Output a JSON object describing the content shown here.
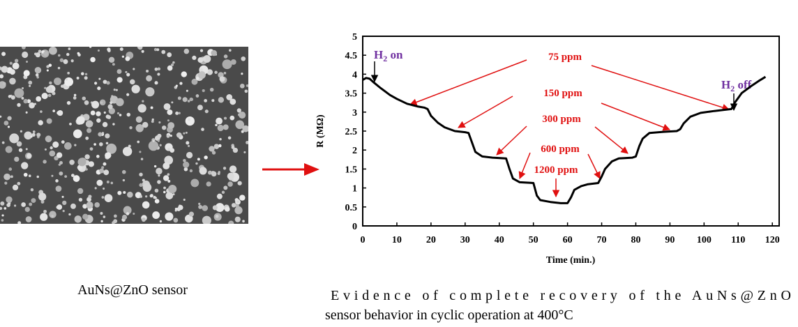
{
  "chart_data": {
    "type": "line",
    "xlabel": "Time (min.)",
    "ylabel": "R (MΩ)",
    "xlim": [
      0,
      122
    ],
    "ylim": [
      0,
      5
    ],
    "xticks": [
      0,
      10,
      20,
      30,
      40,
      50,
      60,
      70,
      80,
      90,
      100,
      110,
      120
    ],
    "yticks": [
      0,
      0.5,
      1,
      1.5,
      2,
      2.5,
      3,
      3.5,
      4,
      4.5,
      5
    ],
    "color": "#000000",
    "x": [
      0,
      1,
      2,
      3,
      5,
      8,
      10,
      13,
      16,
      18,
      19,
      20,
      22,
      24,
      27,
      30,
      31,
      32,
      33,
      35,
      38,
      42,
      43,
      44,
      46,
      50,
      51,
      52,
      55,
      58,
      60,
      61,
      62,
      64,
      66,
      69,
      70,
      71,
      73,
      75,
      79,
      80,
      81,
      82,
      84,
      88,
      92,
      93,
      94,
      96,
      99,
      103,
      106,
      108,
      109,
      111,
      114,
      116,
      118
    ],
    "values": [
      3.85,
      3.9,
      3.88,
      3.8,
      3.65,
      3.45,
      3.35,
      3.22,
      3.15,
      3.12,
      3.08,
      2.9,
      2.72,
      2.6,
      2.5,
      2.47,
      2.45,
      2.2,
      1.95,
      1.83,
      1.8,
      1.78,
      1.5,
      1.25,
      1.15,
      1.13,
      0.8,
      0.68,
      0.63,
      0.6,
      0.6,
      0.75,
      0.95,
      1.05,
      1.1,
      1.13,
      1.3,
      1.5,
      1.7,
      1.78,
      1.8,
      1.83,
      2.1,
      2.3,
      2.45,
      2.48,
      2.5,
      2.55,
      2.7,
      2.88,
      2.98,
      3.03,
      3.06,
      3.08,
      3.25,
      3.5,
      3.7,
      3.82,
      3.93
    ],
    "annotations": {
      "h2_on": {
        "main": "H",
        "sub": "2",
        "rest": " on"
      },
      "h2_off": {
        "main": "H",
        "sub": "2",
        "rest": " off"
      },
      "ppm": [
        "75 ppm",
        "150 ppm",
        "300 ppm",
        "600 ppm",
        "1200 ppm"
      ]
    }
  },
  "captions": {
    "image": "AuNs@ZnO sensor",
    "chart": [
      "Evidence of complete recovery of the AuNs@ZnO",
      "sensor behavior in cyclic operation at 400°C"
    ]
  }
}
